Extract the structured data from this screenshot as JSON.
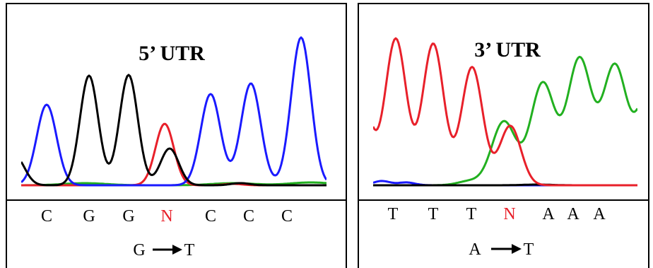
{
  "panels": [
    {
      "title": "5’ UTR",
      "bases": [
        "C",
        "G",
        "G",
        "N",
        "C",
        "C",
        "C"
      ],
      "mutation": {
        "from": "G",
        "to": "T"
      }
    },
    {
      "title": "3’ UTR",
      "bases": [
        "T",
        "T",
        "T",
        "N",
        "A",
        "A",
        "A"
      ],
      "mutation": {
        "from": "A",
        "to": "T"
      }
    }
  ]
}
